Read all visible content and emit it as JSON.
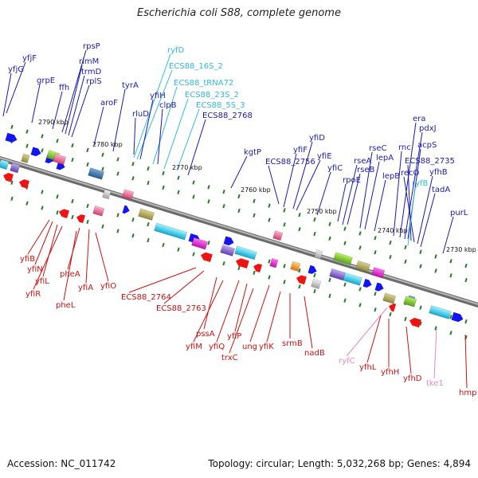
{
  "title": "Escherichia coli S88, complete genome",
  "accession_text": "Accession: NC_011742",
  "stats_text": "Topology: circular; Length: 5,032,268 bp; Genes: 4,894",
  "colors": {
    "plus_label": "#1a1ab0",
    "minus_label": "#cc1111",
    "rna_label": "#33b8dd",
    "pseudo_label": "#e88ab8",
    "backbone": "#777777",
    "tick": "#2a7a2a",
    "arrow_blue": "#1414ee",
    "arrow_red": "#ee1414"
  },
  "kbp_labels": [
    "2790 kbp",
    "2780 kbp",
    "2770 kbp",
    "2760 kbp",
    "2750 kbp",
    "2740 kbp",
    "2730 kbp"
  ],
  "top_labels": [
    {
      "text": "yfjF",
      "color": "plus"
    },
    {
      "text": "yfjG",
      "color": "plus"
    },
    {
      "text": "grpE",
      "color": "plus"
    },
    {
      "text": "ffh",
      "color": "plus"
    },
    {
      "text": "rpsP",
      "color": "plus"
    },
    {
      "text": "rimM",
      "color": "plus"
    },
    {
      "text": "trmD",
      "color": "plus"
    },
    {
      "text": "rplS",
      "color": "plus"
    },
    {
      "text": "aroF",
      "color": "plus"
    },
    {
      "text": "tyrA",
      "color": "plus"
    },
    {
      "text": "rluD",
      "color": "plus"
    },
    {
      "text": "ryfD",
      "color": "rna"
    },
    {
      "text": "ECS88_16S_2",
      "color": "rna"
    },
    {
      "text": "yfiH",
      "color": "plus"
    },
    {
      "text": "ECS88_tRNA72",
      "color": "rna"
    },
    {
      "text": "clpB",
      "color": "plus"
    },
    {
      "text": "ECS88_23S_2",
      "color": "rna"
    },
    {
      "text": "ECS88_5S_3",
      "color": "rna"
    },
    {
      "text": "ECS88_2768",
      "color": "plus"
    },
    {
      "text": "kgtP",
      "color": "plus"
    },
    {
      "text": "ECS88_2756",
      "color": "plus"
    },
    {
      "text": "yfiF",
      "color": "plus"
    },
    {
      "text": "yfiD",
      "color": "plus"
    },
    {
      "text": "yfiE",
      "color": "plus"
    },
    {
      "text": "yfiC",
      "color": "plus"
    },
    {
      "text": "rpoE",
      "color": "plus"
    },
    {
      "text": "rseA",
      "color": "plus"
    },
    {
      "text": "rseB",
      "color": "plus"
    },
    {
      "text": "rseC",
      "color": "plus"
    },
    {
      "text": "lepA",
      "color": "plus"
    },
    {
      "text": "lepB",
      "color": "plus"
    },
    {
      "text": "rnc",
      "color": "plus"
    },
    {
      "text": "era",
      "color": "plus"
    },
    {
      "text": "pdxJ",
      "color": "plus"
    },
    {
      "text": "acpS",
      "color": "plus"
    },
    {
      "text": "ECS88_2735",
      "color": "plus"
    },
    {
      "text": "recO",
      "color": "plus"
    },
    {
      "text": "ryfB",
      "color": "rna"
    },
    {
      "text": "yfhB",
      "color": "plus"
    },
    {
      "text": "tadA",
      "color": "plus"
    },
    {
      "text": "purL",
      "color": "plus"
    }
  ],
  "bottom_labels": [
    {
      "text": "yfiB",
      "color": "minus"
    },
    {
      "text": "yfiN",
      "color": "minus"
    },
    {
      "text": "yfiL",
      "color": "minus"
    },
    {
      "text": "yfiR",
      "color": "minus"
    },
    {
      "text": "pheA",
      "color": "minus"
    },
    {
      "text": "pheL",
      "color": "minus"
    },
    {
      "text": "yfiA",
      "color": "minus"
    },
    {
      "text": "yfiO",
      "color": "minus"
    },
    {
      "text": "ECS88_2764",
      "color": "minus"
    },
    {
      "text": "ECS88_2763",
      "color": "minus"
    },
    {
      "text": "pssA",
      "color": "minus"
    },
    {
      "text": "yfiM",
      "color": "minus"
    },
    {
      "text": "yfiQ",
      "color": "minus"
    },
    {
      "text": "yfiP",
      "color": "minus"
    },
    {
      "text": "trxC",
      "color": "minus"
    },
    {
      "text": "ung",
      "color": "minus"
    },
    {
      "text": "yfiK",
      "color": "minus"
    },
    {
      "text": "srmB",
      "color": "minus"
    },
    {
      "text": "nadB",
      "color": "minus"
    },
    {
      "text": "ryfC",
      "color": "pseudo"
    },
    {
      "text": "yfhL",
      "color": "minus"
    },
    {
      "text": "yfhH",
      "color": "minus"
    },
    {
      "text": "yfhD",
      "color": "minus"
    },
    {
      "text": "tke1",
      "color": "pseudo"
    },
    {
      "text": "hmp",
      "color": "minus"
    }
  ]
}
